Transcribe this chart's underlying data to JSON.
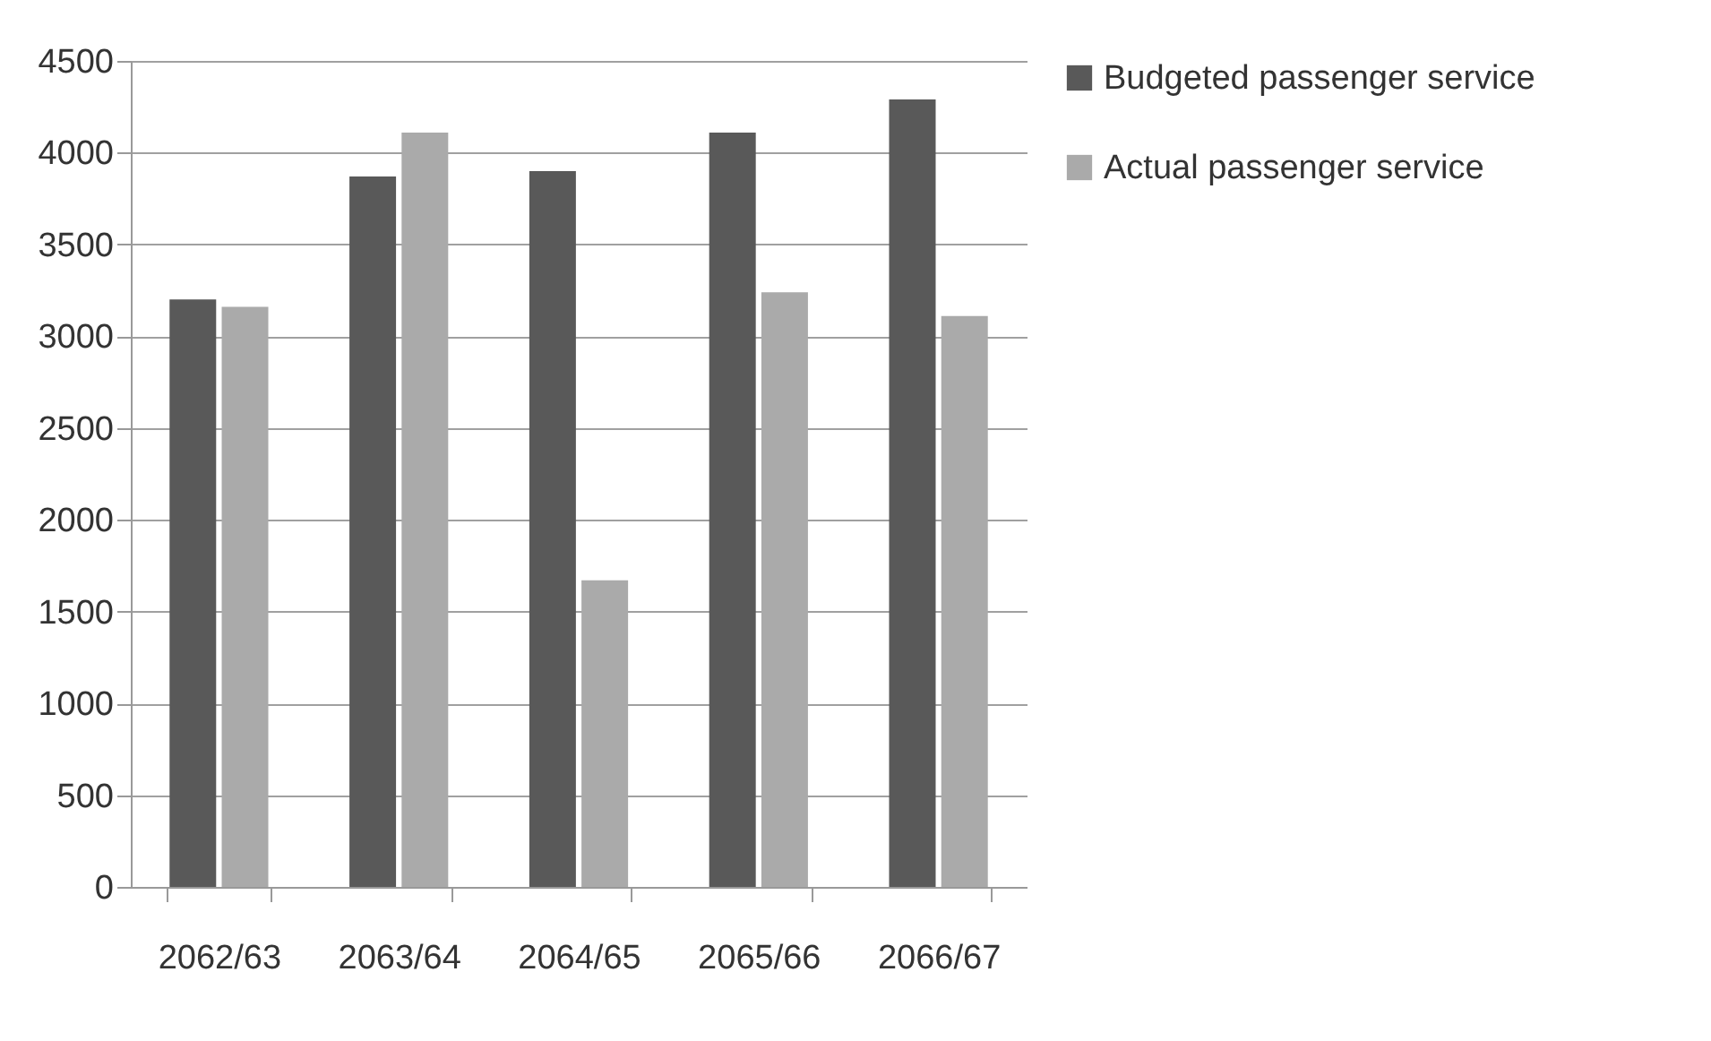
{
  "chart_data": {
    "type": "bar",
    "categories": [
      "2062/63",
      "2063/64",
      "2064/65",
      "2065/66",
      "2066/67"
    ],
    "series": [
      {
        "name": "Budgeted passenger service",
        "color": "#595959",
        "values": [
          3200,
          3870,
          3900,
          4110,
          4290
        ]
      },
      {
        "name": "Actual passenger service",
        "color": "#aaaaaa",
        "values": [
          3160,
          4110,
          1670,
          3240,
          3110
        ]
      }
    ],
    "ylim": [
      0,
      4500
    ],
    "yticks": [
      0,
      500,
      1000,
      1500,
      2000,
      2500,
      3000,
      3500,
      4000,
      4500
    ],
    "grid": "y",
    "legend": "right"
  }
}
